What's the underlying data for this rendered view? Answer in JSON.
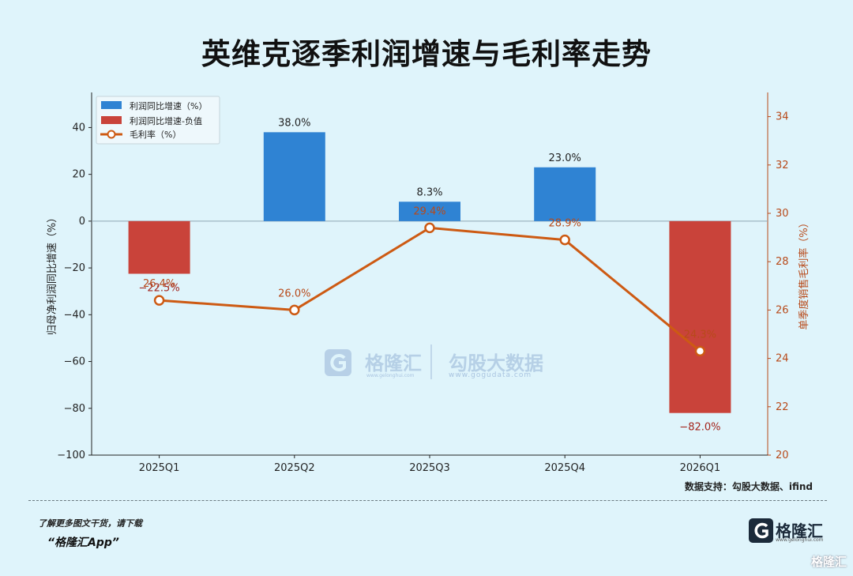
{
  "title": "英维克逐季利润增速与毛利率走势",
  "source": "数据支持：勾股大数据、ifind",
  "promo_line1": "了解更多图文干货，请下载",
  "promo_line2": "“格隆汇App”",
  "logo": {
    "name": "格隆汇",
    "url": "www.gelonghui.com"
  },
  "corner_watermark": "格隆汇",
  "watermark": {
    "left": "格隆汇",
    "right": "勾股大数据",
    "left_url": "www.gelonghui.com",
    "right_url": "www.gogudata.com"
  },
  "colors": {
    "background": "#dff4fb",
    "bar_positive": "#2f83d3",
    "bar_negative": "#c9433a",
    "line": "#cd5a13",
    "right_axis": "#b84a1a"
  },
  "chart_data": {
    "type": "bar",
    "categories": [
      "2025Q1",
      "2025Q2",
      "2025Q3",
      "2025Q4",
      "2026Q1"
    ],
    "series": [
      {
        "name": "利润同比增速（%）",
        "type": "bar",
        "axis": "left",
        "sign": "positive",
        "values": [
          null,
          38.0,
          8.3,
          23.0,
          null
        ],
        "labels": [
          "",
          "38.0%",
          "8.3%",
          "23.0%",
          ""
        ]
      },
      {
        "name": "利润同比增速-负值",
        "type": "bar",
        "axis": "left",
        "sign": "negative",
        "values": [
          -22.5,
          null,
          null,
          null,
          -82.0
        ],
        "labels": [
          "−22.5%",
          "",
          "",
          "",
          "−82.0%"
        ]
      },
      {
        "name": "毛利率（%）",
        "type": "line",
        "axis": "right",
        "values": [
          26.4,
          26.0,
          29.4,
          28.9,
          24.3
        ],
        "labels": [
          "26.4%",
          "26.0%",
          "29.4%",
          "28.9%",
          "24.3%"
        ]
      }
    ],
    "ylabel": "归母净利润同比增速（%）",
    "y2label": "单季度销售毛利率（%）",
    "ylim": [
      -100,
      55
    ],
    "y2lim": [
      20,
      35
    ],
    "yticks": [
      -100,
      -80,
      -60,
      -40,
      -20,
      0,
      20,
      40
    ],
    "y2ticks": [
      20,
      22,
      24,
      26,
      28,
      30,
      32,
      34
    ],
    "legend": "top-left",
    "grid": false
  }
}
